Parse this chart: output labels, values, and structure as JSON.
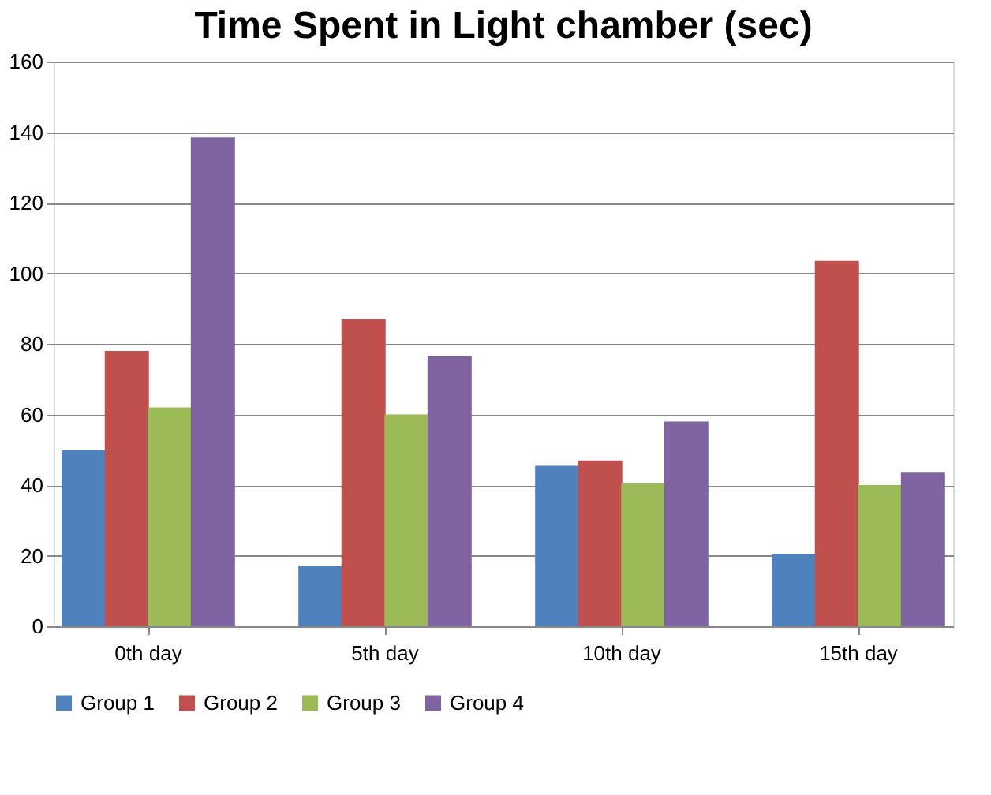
{
  "chart_data": {
    "type": "bar",
    "title": "Time Spent in Light chamber (sec)",
    "categories": [
      "0th day",
      "5th day",
      "10th day",
      "15th day"
    ],
    "series": [
      {
        "name": "Group 1",
        "color": "#4f81bd",
        "values": [
          50,
          17,
          45.5,
          20.5
        ]
      },
      {
        "name": "Group 2",
        "color": "#c0504d",
        "values": [
          78,
          87,
          47,
          103.5
        ]
      },
      {
        "name": "Group 3",
        "color": "#9bbb59",
        "values": [
          62,
          60,
          40.5,
          40
        ]
      },
      {
        "name": "Group 4",
        "color": "#8064a2",
        "values": [
          138.5,
          76.5,
          58,
          43.5
        ]
      }
    ],
    "ylim": [
      0,
      160
    ],
    "yticks": [
      0,
      20,
      40,
      60,
      80,
      100,
      120,
      140,
      160
    ],
    "grid": "y",
    "legend": "bottom"
  }
}
